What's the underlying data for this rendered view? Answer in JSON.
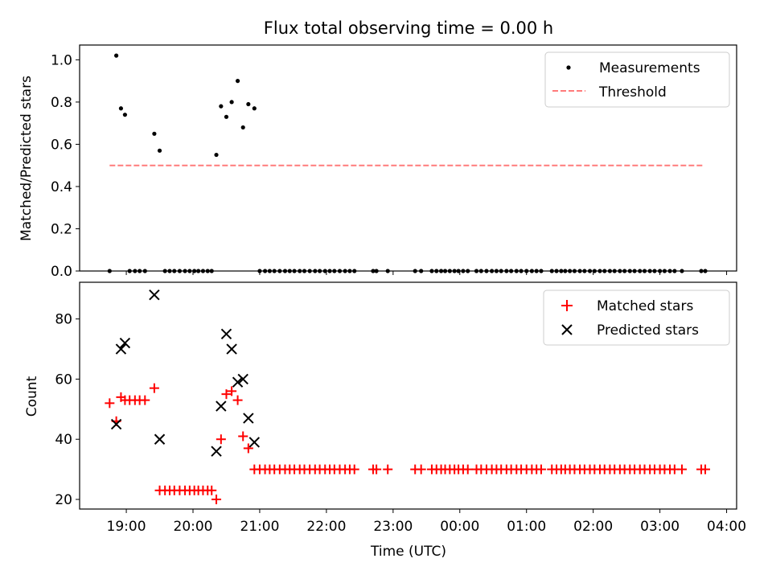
{
  "chart_data": [
    {
      "type": "scatter",
      "title": "Flux total observing time = 0.00 h",
      "xlabel": "",
      "ylabel": "Matched/Predicted stars",
      "xlim": [
        18.3,
        28.15
      ],
      "ylim": [
        0.0,
        1.07
      ],
      "yticks": [
        0.0,
        0.2,
        0.4,
        0.6,
        0.8,
        1.0
      ],
      "ytick_labels": [
        "0.0",
        "0.2",
        "0.4",
        "0.6",
        "0.8",
        "1.0"
      ],
      "legend": {
        "position": "top-right",
        "labels": [
          "Measurements",
          "Threshold"
        ]
      },
      "threshold": {
        "name": "Threshold",
        "value": 0.5,
        "x_range": [
          18.75,
          27.65
        ],
        "color": "#ff7b7b"
      },
      "series": [
        {
          "name": "Measurements",
          "color": "#000000",
          "x": [
            18.75,
            18.85,
            18.92,
            18.98,
            19.05,
            19.13,
            19.2,
            19.28,
            19.42,
            19.5,
            19.58,
            19.65,
            19.72,
            19.8,
            19.88,
            19.95,
            20.02,
            20.08,
            20.15,
            20.22,
            20.28,
            20.35,
            20.42,
            20.5,
            20.58,
            20.67,
            20.75,
            20.83,
            20.92,
            21.0,
            21.08,
            21.15,
            21.22,
            21.3,
            21.38,
            21.45,
            21.52,
            21.6,
            21.67,
            21.75,
            21.83,
            21.9,
            21.98,
            22.05,
            22.12,
            22.2,
            22.28,
            22.35,
            22.42,
            22.7,
            22.75,
            22.92,
            23.33,
            23.42,
            23.58,
            23.65,
            23.72,
            23.78,
            23.85,
            23.92,
            23.98,
            24.05,
            24.12,
            24.25,
            24.32,
            24.4,
            24.48,
            24.55,
            24.62,
            24.7,
            24.77,
            24.85,
            24.92,
            25.0,
            25.08,
            25.15,
            25.22,
            25.38,
            25.45,
            25.52,
            25.58,
            25.65,
            25.72,
            25.8,
            25.87,
            25.95,
            26.02,
            26.1,
            26.17,
            26.25,
            26.32,
            26.4,
            26.47,
            26.55,
            26.62,
            26.7,
            26.77,
            26.85,
            26.92,
            27.0,
            27.07,
            27.15,
            27.22,
            27.33,
            27.62,
            27.68
          ],
          "y": [
            0,
            1.02,
            0.77,
            0.74,
            0,
            0,
            0,
            0,
            0.65,
            0.57,
            0,
            0,
            0,
            0,
            0,
            0,
            0,
            0,
            0,
            0,
            0,
            0.55,
            0.78,
            0.73,
            0.8,
            0.9,
            0.68,
            0.79,
            0.77,
            0,
            0,
            0,
            0,
            0,
            0,
            0,
            0,
            0,
            0,
            0,
            0,
            0,
            0,
            0,
            0,
            0,
            0,
            0,
            0,
            0,
            0,
            0,
            0,
            0,
            0,
            0,
            0,
            0,
            0,
            0,
            0,
            0,
            0,
            0,
            0,
            0,
            0,
            0,
            0,
            0,
            0,
            0,
            0,
            0,
            0,
            0,
            0,
            0,
            0,
            0,
            0,
            0,
            0,
            0,
            0,
            0,
            0,
            0,
            0,
            0,
            0,
            0,
            0,
            0,
            0,
            0,
            0,
            0,
            0,
            0,
            0,
            0,
            0,
            0,
            0,
            0
          ]
        }
      ]
    },
    {
      "type": "scatter",
      "title": "",
      "xlabel": "Time (UTC)",
      "ylabel": "Count",
      "xlim": [
        18.3,
        28.15
      ],
      "ylim": [
        16.8,
        92.2
      ],
      "yticks": [
        20,
        40,
        60,
        80
      ],
      "ytick_labels": [
        "20",
        "40",
        "60",
        "80"
      ],
      "xticks": [
        19,
        20,
        21,
        22,
        23,
        24,
        25,
        26,
        27,
        28
      ],
      "xtick_labels": [
        "19:00",
        "20:00",
        "21:00",
        "22:00",
        "23:00",
        "00:00",
        "01:00",
        "02:00",
        "03:00",
        "04:00"
      ],
      "legend": {
        "position": "top-right",
        "labels": [
          "Matched stars",
          "Predicted stars"
        ]
      },
      "series": [
        {
          "name": "Matched stars",
          "marker": "+",
          "color": "#ff0000",
          "x": [
            18.75,
            18.85,
            18.92,
            18.98,
            19.05,
            19.13,
            19.2,
            19.28,
            19.42,
            19.5,
            19.58,
            19.65,
            19.72,
            19.8,
            19.88,
            19.95,
            20.02,
            20.08,
            20.15,
            20.22,
            20.28,
            20.35,
            20.42,
            20.5,
            20.58,
            20.67,
            20.75,
            20.83,
            20.92,
            21.0,
            21.08,
            21.15,
            21.22,
            21.3,
            21.38,
            21.45,
            21.52,
            21.6,
            21.67,
            21.75,
            21.83,
            21.9,
            21.98,
            22.05,
            22.12,
            22.2,
            22.28,
            22.35,
            22.42,
            22.7,
            22.75,
            22.92,
            23.33,
            23.42,
            23.58,
            23.65,
            23.72,
            23.78,
            23.85,
            23.92,
            23.98,
            24.05,
            24.12,
            24.25,
            24.32,
            24.4,
            24.48,
            24.55,
            24.62,
            24.7,
            24.77,
            24.85,
            24.92,
            25.0,
            25.08,
            25.15,
            25.22,
            25.38,
            25.45,
            25.52,
            25.58,
            25.65,
            25.72,
            25.8,
            25.87,
            25.95,
            26.02,
            26.1,
            26.17,
            26.25,
            26.32,
            26.4,
            26.47,
            26.55,
            26.62,
            26.7,
            26.77,
            26.85,
            26.92,
            27.0,
            27.07,
            27.15,
            27.22,
            27.33,
            27.62,
            27.68
          ],
          "y": [
            52,
            46,
            54,
            53,
            53,
            53,
            53,
            53,
            57,
            23,
            23,
            23,
            23,
            23,
            23,
            23,
            23,
            23,
            23,
            23,
            23,
            20,
            40,
            55,
            56,
            53,
            41,
            37,
            30,
            30,
            30,
            30,
            30,
            30,
            30,
            30,
            30,
            30,
            30,
            30,
            30,
            30,
            30,
            30,
            30,
            30,
            30,
            30,
            30,
            30,
            30,
            30,
            30,
            30,
            30,
            30,
            30,
            30,
            30,
            30,
            30,
            30,
            30,
            30,
            30,
            30,
            30,
            30,
            30,
            30,
            30,
            30,
            30,
            30,
            30,
            30,
            30,
            30,
            30,
            30,
            30,
            30,
            30,
            30,
            30,
            30,
            30,
            30,
            30,
            30,
            30,
            30,
            30,
            30,
            30,
            30,
            30,
            30,
            30,
            30,
            30,
            30,
            30,
            30,
            30,
            30
          ]
        },
        {
          "name": "Predicted stars",
          "marker": "x",
          "color": "#000000",
          "x": [
            18.85,
            18.92,
            18.98,
            19.42,
            19.5,
            20.35,
            20.42,
            20.5,
            20.58,
            20.67,
            20.75,
            20.83,
            20.92
          ],
          "y": [
            45,
            70,
            72,
            88,
            40,
            36,
            51,
            75,
            70,
            59,
            60,
            47,
            39
          ]
        }
      ]
    }
  ]
}
